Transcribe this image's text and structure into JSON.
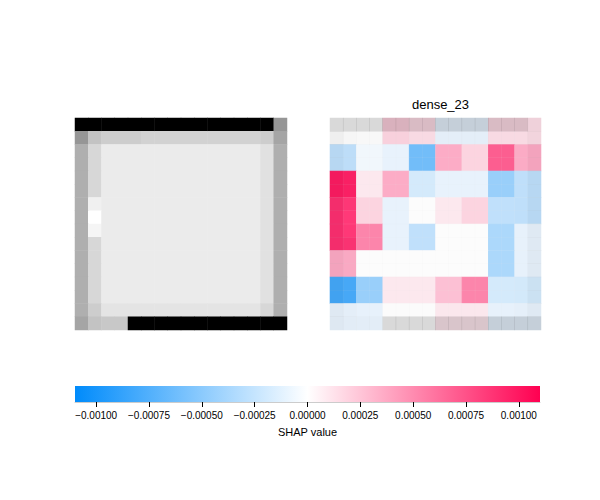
{
  "chart_data": [
    {
      "type": "heatmap",
      "color": "gray",
      "tick_labels": false,
      "range": [
        0,
        255
      ],
      "values": [
        [
          0,
          0,
          0,
          0,
          0,
          0,
          0,
          0,
          0,
          0,
          0,
          0,
          0,
          0,
          0,
          150
        ],
        [
          150,
          195,
          205,
          205,
          205,
          210,
          210,
          210,
          210,
          210,
          210,
          210,
          210,
          210,
          205,
          165
        ],
        [
          175,
          215,
          235,
          235,
          235,
          235,
          235,
          235,
          235,
          235,
          235,
          235,
          235,
          235,
          225,
          175
        ],
        [
          175,
          215,
          235,
          235,
          235,
          235,
          235,
          235,
          235,
          235,
          235,
          235,
          235,
          235,
          225,
          175
        ],
        [
          175,
          215,
          235,
          235,
          235,
          235,
          235,
          235,
          235,
          235,
          235,
          235,
          235,
          235,
          225,
          175
        ],
        [
          175,
          215,
          235,
          235,
          235,
          235,
          235,
          235,
          235,
          235,
          235,
          235,
          235,
          235,
          225,
          175
        ],
        [
          175,
          240,
          235,
          235,
          235,
          235,
          235,
          235,
          235,
          235,
          235,
          235,
          235,
          235,
          225,
          175
        ],
        [
          175,
          255,
          235,
          235,
          235,
          235,
          235,
          235,
          235,
          235,
          235,
          235,
          235,
          235,
          225,
          175
        ],
        [
          175,
          245,
          235,
          235,
          235,
          235,
          235,
          235,
          235,
          235,
          235,
          235,
          235,
          235,
          225,
          175
        ],
        [
          175,
          215,
          235,
          235,
          235,
          235,
          235,
          235,
          235,
          235,
          235,
          235,
          235,
          235,
          225,
          175
        ],
        [
          175,
          215,
          235,
          235,
          235,
          235,
          235,
          235,
          235,
          235,
          235,
          235,
          235,
          235,
          225,
          175
        ],
        [
          175,
          215,
          235,
          235,
          235,
          235,
          235,
          235,
          235,
          235,
          235,
          235,
          235,
          235,
          225,
          175
        ],
        [
          175,
          215,
          235,
          235,
          235,
          235,
          235,
          235,
          235,
          235,
          235,
          235,
          235,
          235,
          225,
          175
        ],
        [
          175,
          215,
          235,
          235,
          235,
          235,
          235,
          235,
          235,
          235,
          235,
          235,
          235,
          235,
          225,
          175
        ],
        [
          175,
          205,
          228,
          228,
          228,
          228,
          228,
          228,
          228,
          228,
          228,
          228,
          228,
          228,
          215,
          175
        ],
        [
          165,
          195,
          200,
          200,
          0,
          0,
          0,
          0,
          0,
          0,
          0,
          0,
          0,
          0,
          0,
          0
        ]
      ]
    },
    {
      "type": "heatmap",
      "title": "dense_23",
      "color": "red_transparent_blue",
      "tick_labels": false,
      "values": [
        [
          0,
          0,
          0.0002,
          0.00015,
          -0.0001,
          -0.0001,
          0.00015,
          0.00015
        ],
        [
          -0.0003,
          -5e-05,
          -0.0001,
          -0.0007,
          0.0004,
          0.0002,
          0.0008,
          0.0004
        ],
        [
          0.0011,
          0.0001,
          0.0004,
          -0.0002,
          -0.0001,
          -0.0001,
          -0.0005,
          -0.0003
        ],
        [
          0.001,
          0.0002,
          -0.0001,
          0,
          0.0001,
          0.0002,
          -0.0003,
          -0.0003
        ],
        [
          0.001,
          0.0006,
          -0.0001,
          -0.0003,
          0,
          0,
          -0.0004,
          -0.0001
        ],
        [
          0.0004,
          0,
          0,
          0,
          0,
          0,
          -0.0004,
          -0.0001
        ],
        [
          -0.0009,
          -0.0005,
          0.0001,
          0.0001,
          0.0003,
          0.0006,
          -0.0002,
          -0.0002
        ],
        [
          -0.0001,
          -0.0001,
          0,
          0,
          0.0001,
          0.0001,
          -0.0001,
          -0.0001
        ]
      ],
      "colorbar": {
        "label": "SHAP value",
        "range": [
          -0.0011,
          0.0011
        ],
        "ticks": [
          {
            "value": -0.001,
            "label": "−0.00100"
          },
          {
            "value": -0.00075,
            "label": "−0.00075"
          },
          {
            "value": -0.0005,
            "label": "−0.00050"
          },
          {
            "value": -0.00025,
            "label": "−0.00025"
          },
          {
            "value": 0,
            "label": "0.00000"
          },
          {
            "value": 0.00025,
            "label": "0.00025"
          },
          {
            "value": 0.0005,
            "label": "0.00050"
          },
          {
            "value": 0.00075,
            "label": "0.00075"
          },
          {
            "value": 0.001,
            "label": "0.00100"
          }
        ]
      }
    }
  ]
}
